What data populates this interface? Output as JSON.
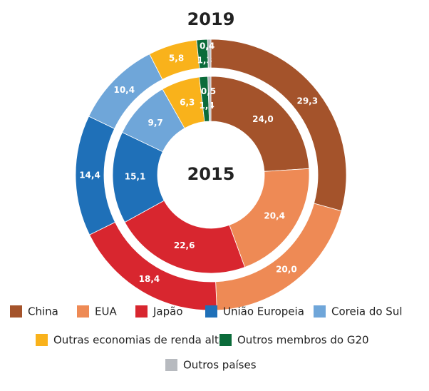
{
  "chart_data": {
    "type": "donut",
    "categories": [
      "China",
      "EUA",
      "Japão",
      "União Europeia",
      "Coreia do Sul",
      "Outras economias de renda alta",
      "Outros membros do G20",
      "Outros países"
    ],
    "colors": [
      "#a4532b",
      "#ee8a55",
      "#d8262f",
      "#1f70b8",
      "#6fa6d9",
      "#f9b21b",
      "#0b6b3a",
      "#b7babf"
    ],
    "series": [
      {
        "name": "2019",
        "values": [
          29.3,
          20.0,
          18.4,
          14.4,
          10.4,
          5.8,
          1.3,
          0.4
        ],
        "value_labels": [
          "29,3",
          "20,0",
          "18,4",
          "14,4",
          "10,4",
          "5,8",
          "1,3",
          "0,4"
        ]
      },
      {
        "name": "2015",
        "values": [
          24.0,
          20.4,
          22.6,
          15.1,
          9.7,
          6.3,
          1.4,
          0.5
        ],
        "value_labels": [
          "24,0",
          "20,4",
          "22,6",
          "15,1",
          "9,7",
          "6,3",
          "1,4",
          "0,5"
        ]
      }
    ]
  }
}
